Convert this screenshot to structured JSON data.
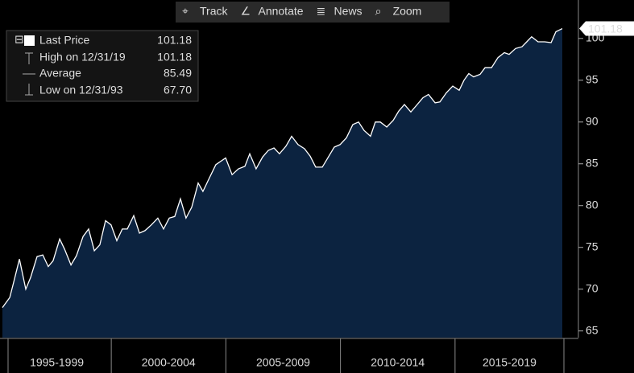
{
  "chart_data": {
    "type": "area",
    "toolbar": [
      "Track",
      "Annotate",
      "News",
      "Zoom"
    ],
    "legend": {
      "last_price": {
        "label": "Last Price",
        "value": 101.18
      },
      "high": {
        "label": "High on 12/31/19",
        "value": 101.18
      },
      "average": {
        "label": "Average",
        "value": 85.49
      },
      "low": {
        "label": "Low on 12/31/93",
        "value": {
          "value": 67.7,
          "label": "67.70"
        }
      }
    },
    "series": [
      {
        "color": "#ffffff",
        "fill": "#0c2340",
        "x": [
          1995.25,
          1995.57,
          1995.74,
          1995.99,
          1996.27,
          1996.48,
          1996.76,
          1997.01,
          1997.25,
          1997.46,
          1997.75,
          1997.96,
          1998.24,
          1998.48,
          1998.77,
          1999.01,
          1999.26,
          1999.5,
          1999.75,
          1999.99,
          2000.24,
          2000.48,
          2000.7,
          2000.98,
          2001.23,
          2001.47,
          2001.75,
          2002.03,
          2002.28,
          2002.53,
          2002.77,
          2003.02,
          2003.26,
          2003.51,
          2003.79,
          2004.0,
          2004.28,
          2004.56,
          2004.99,
          2005.27,
          2005.55,
          2005.83,
          2006.04,
          2006.32,
          2006.6,
          2006.85,
          2007.1,
          2007.34,
          2007.62,
          2007.87,
          2008.15,
          2008.43,
          2008.68,
          2008.92,
          2009.21,
          2009.49,
          2009.73,
          2009.98,
          2010.26,
          2010.54,
          2010.79,
          2011.03,
          2011.31,
          2011.52,
          2011.74,
          2012.02,
          2012.3,
          2012.54,
          2012.79,
          2013.07,
          2013.35,
          2013.6,
          2013.84,
          2014.13,
          2014.34,
          2014.62,
          2014.9,
          2015.18,
          2015.39,
          2015.6,
          2015.81,
          2016.09,
          2016.31,
          2016.59,
          2016.87,
          2017.15,
          2017.36,
          2017.64,
          2017.92,
          2018.13,
          2018.34,
          2018.62,
          2018.91,
          2019.19,
          2019.4,
          2019.68
        ],
        "values": [
          67.8,
          69.0,
          70.8,
          73.6,
          70.0,
          71.4,
          73.9,
          74.1,
          72.7,
          73.4,
          76.0,
          74.8,
          72.9,
          74.0,
          76.3,
          77.2,
          74.6,
          75.3,
          78.2,
          77.7,
          75.8,
          77.2,
          77.2,
          78.8,
          76.7,
          77.0,
          77.7,
          78.5,
          77.2,
          78.5,
          78.7,
          80.8,
          78.5,
          79.8,
          82.7,
          81.7,
          83.3,
          84.9,
          85.7,
          83.7,
          84.4,
          84.7,
          86.2,
          84.4,
          85.8,
          86.6,
          86.9,
          86.2,
          87.1,
          88.3,
          87.3,
          86.8,
          85.9,
          84.6,
          84.6,
          85.9,
          87.0,
          87.3,
          88.1,
          89.7,
          90.0,
          89.0,
          88.3,
          90.0,
          90.0,
          89.4,
          90.2,
          91.3,
          92.1,
          91.2,
          92.1,
          92.9,
          93.3,
          92.3,
          92.4,
          93.5,
          94.3,
          93.8,
          95.0,
          95.8,
          95.4,
          95.7,
          96.5,
          96.5,
          97.7,
          98.3,
          98.1,
          98.8,
          99.0,
          99.6,
          100.2,
          99.6,
          99.6,
          99.5,
          100.8,
          101.18
        ]
      }
    ],
    "xlim": [
      1995.25,
      2019.75
    ],
    "xticks": [
      2000,
      2005,
      2010,
      2015
    ],
    "x_periods": [
      "1995-1999",
      "2000-2004",
      "2005-2009",
      "2010-2014",
      "2015-2019"
    ],
    "ylim": [
      64.2,
      104.6
    ],
    "yticks": [
      65,
      70,
      75,
      80,
      85,
      90,
      95,
      100
    ]
  }
}
